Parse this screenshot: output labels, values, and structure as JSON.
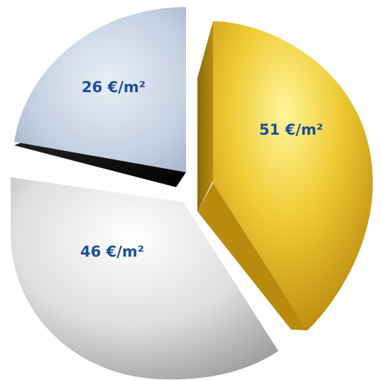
{
  "chart_data": {
    "type": "pie",
    "title": "",
    "slices": [
      {
        "label": "51 €/m²",
        "value": 51,
        "color": "#e8b826"
      },
      {
        "label": "46 €/m²",
        "value": 46,
        "color": "#d9d9d9"
      },
      {
        "label": "26 €/m²",
        "value": 26,
        "color": "#b7c6db"
      }
    ],
    "exploded": true,
    "style": "3d-extruded",
    "label_color": "#1f4e97"
  }
}
